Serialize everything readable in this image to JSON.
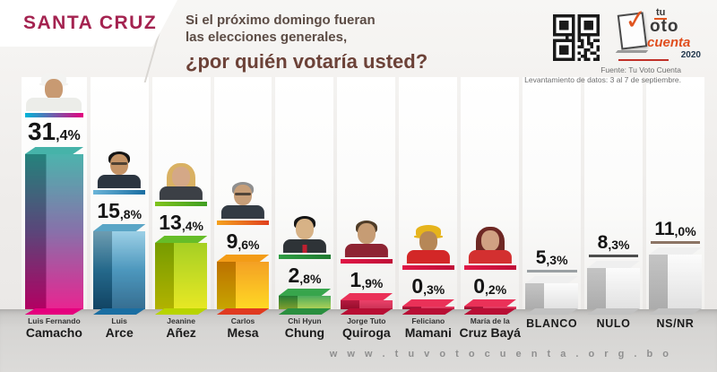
{
  "header": {
    "region": "SANTA CRUZ",
    "question_line1": "Si el próximo domingo fueran",
    "question_line2": "las elecciones generales,",
    "question_line3": "¿por quién votaría usted?",
    "source_line1": "Fuente: Tu Voto Cuenta",
    "source_line2": "Levantamiento de datos: 3 al 7 de septiembre.",
    "logo": {
      "tu": "tu",
      "oto": "oto",
      "cuenta": "cuenta",
      "year": "2020"
    }
  },
  "footer": {
    "url": "w w w . t u v o t o c u e n t a . o r g . b o"
  },
  "theme": {
    "accent": "#a42350",
    "question_brown": "#6c4238",
    "text_dark": "#1b1b1b",
    "floor_gray": "#cccbc9",
    "track_white": "#ffffff"
  },
  "chart_data": {
    "type": "bar",
    "title": "¿por quién votaría usted?",
    "subtitle": "Si el próximo domingo fueran las elecciones generales",
    "region": "SANTA CRUZ",
    "unit": "%",
    "categories": [
      "Luis Fernando Camacho",
      "Luis Arce",
      "Jeanine Añez",
      "Carlos Mesa",
      "Chi Hyun Chung",
      "Jorge Tuto Quiroga",
      "Feliciano Mamani",
      "María de la Cruz Bayá",
      "BLANCO",
      "NULO",
      "NS/NR"
    ],
    "values": [
      31.4,
      15.8,
      13.4,
      9.6,
      2.8,
      1.9,
      0.3,
      0.2,
      5.3,
      8.3,
      11.0
    ],
    "value_labels": [
      "31,4%",
      "15,8%",
      "13,4%",
      "9,6%",
      "2,8%",
      "1,9%",
      "0,3%",
      "0,2%",
      "5,3%",
      "8,3%",
      "11,0%"
    ],
    "ylim": [
      0,
      35
    ],
    "grid": false,
    "legend": false
  },
  "columns": [
    {
      "id": "camacho",
      "name_line1": "Luis Fernando",
      "name_line2": "Camacho",
      "value": 31.4,
      "label": "31,4%",
      "has_photo": true,
      "band": [
        "#00b5d8",
        "#e5007e"
      ],
      "bar": {
        "grad": [
          "#2fa79f",
          "#74599c",
          "#e5007e"
        ],
        "top": "#46b3a9",
        "bottom": "#e5007e"
      },
      "avatar": {
        "type": "cap",
        "skin": "#c89a72",
        "hair": "#f3f3f1",
        "shirt": "#ecede9",
        "acc": "",
        "big": true
      }
    },
    {
      "id": "arce",
      "name_line1": "Luis",
      "name_line2": "Arce",
      "value": 15.8,
      "label": "15,8%",
      "has_photo": true,
      "band": [
        "#6ab4d8",
        "#1a6ea2"
      ],
      "bar": {
        "grad": [
          "#8cc8e2",
          "#2f86b2",
          "#15567f"
        ],
        "top": "#5aa5c6",
        "bottom": "#1a6ea2"
      },
      "avatar": {
        "type": "short",
        "skin": "#c49366",
        "hair": "#161616",
        "shirt": "#2b3540",
        "acc": "glasses",
        "big": false
      }
    },
    {
      "id": "anez",
      "name_line1": "Jeanine",
      "name_line2": "Añez",
      "value": 13.4,
      "label": "13,4%",
      "has_photo": true,
      "band": [
        "#7fc31c",
        "#3f9e22"
      ],
      "bar": {
        "grad": [
          "#97c800",
          "#e4e400"
        ],
        "top": "#66bd28",
        "bottom": "#b8d400"
      },
      "avatar": {
        "type": "long",
        "skin": "#d4a887",
        "hair": "#d9b163",
        "shirt": "#3c4046",
        "acc": "",
        "big": false
      }
    },
    {
      "id": "mesa",
      "name_line1": "Carlos",
      "name_line2": "Mesa",
      "value": 9.6,
      "label": "9,6%",
      "has_photo": true,
      "band": [
        "#f5a21e",
        "#e0401e"
      ],
      "bar": {
        "grad": [
          "#f29000",
          "#ffd400"
        ],
        "top": "#f39c17",
        "bottom": "#e03a20"
      },
      "avatar": {
        "type": "short",
        "skin": "#c79e78",
        "hair": "#8f8f8f",
        "shirt": "#333b44",
        "acc": "glasses",
        "big": false
      }
    },
    {
      "id": "chung",
      "name_line1": "Chi Hyun",
      "name_line2": "Chung",
      "value": 2.8,
      "label": "2,8%",
      "has_photo": true,
      "band": [
        "#2f9e43",
        "#1f7a30"
      ],
      "bar": {
        "grad": [
          "#2f9e43",
          "#a6cc3a"
        ],
        "top": "#37a54c",
        "bottom": "#2a8f3f"
      },
      "avatar": {
        "type": "short",
        "skin": "#d7b286",
        "hair": "#151515",
        "shirt": "#2e3337",
        "acc": "tie",
        "big": false
      }
    },
    {
      "id": "quiroga",
      "name_line1": "Jorge Tuto",
      "name_line2": "Quiroga",
      "value": 1.9,
      "label": "1,9%",
      "has_photo": true,
      "band": [
        "#e01746",
        "#c01038"
      ],
      "bar": {
        "grad": [
          "#e82150",
          "#c01038"
        ],
        "top": "#ea3158",
        "bottom": "#b80e34"
      },
      "avatar": {
        "type": "short",
        "skin": "#c69c74",
        "hair": "#4f3c28",
        "shirt": "#8e2433",
        "acc": "",
        "big": false
      }
    },
    {
      "id": "mamani",
      "name_line1": "Feliciano",
      "name_line2": "Mamani",
      "value": 0.3,
      "label": "0,3%",
      "has_photo": true,
      "band": [
        "#e01746",
        "#c01038"
      ],
      "bar": {
        "grad": [
          "#e82150",
          "#c01038"
        ],
        "top": "#ea3158",
        "bottom": "#b80e34"
      },
      "avatar": {
        "type": "helmet",
        "skin": "#b68757",
        "hair": "#e6b41c",
        "shirt": "#d32727",
        "acc": "",
        "big": false
      }
    },
    {
      "id": "baya",
      "name_line1": "María de la",
      "name_line2": "Cruz Bayá",
      "value": 0.2,
      "label": "0,2%",
      "has_photo": true,
      "band": [
        "#e01746",
        "#c01038"
      ],
      "bar": {
        "grad": [
          "#e82150",
          "#c01038"
        ],
        "top": "#ea3158",
        "bottom": "#b80e34"
      },
      "avatar": {
        "type": "long",
        "skin": "#d0a183",
        "hair": "#6e2824",
        "shirt": "#d33030",
        "acc": "",
        "big": false
      }
    },
    {
      "id": "blanco",
      "name_line1": "",
      "name_line2": "BLANCO",
      "value": 5.3,
      "label": "5,3%",
      "has_photo": false,
      "line_color": "#9aa0a3",
      "bar": {
        "grad": [
          "#fbfbfb",
          "#dcdcdc"
        ],
        "top": "#efefef",
        "bottom": "#c2c2c2"
      }
    },
    {
      "id": "nulo",
      "name_line1": "",
      "name_line2": "NULO",
      "value": 8.3,
      "label": "8,3%",
      "has_photo": false,
      "line_color": "#4d4d4d",
      "bar": {
        "grad": [
          "#fbfbfb",
          "#dcdcdc"
        ],
        "top": "#efefef",
        "bottom": "#c2c2c2"
      }
    },
    {
      "id": "nsnr",
      "name_line1": "",
      "name_line2": "NS/NR",
      "value": 11.0,
      "label": "11,0%",
      "has_photo": false,
      "line_color": "#8c7464",
      "bar": {
        "grad": [
          "#fbfbfb",
          "#dcdcdc"
        ],
        "top": "#efefef",
        "bottom": "#c2c2c2"
      }
    }
  ]
}
